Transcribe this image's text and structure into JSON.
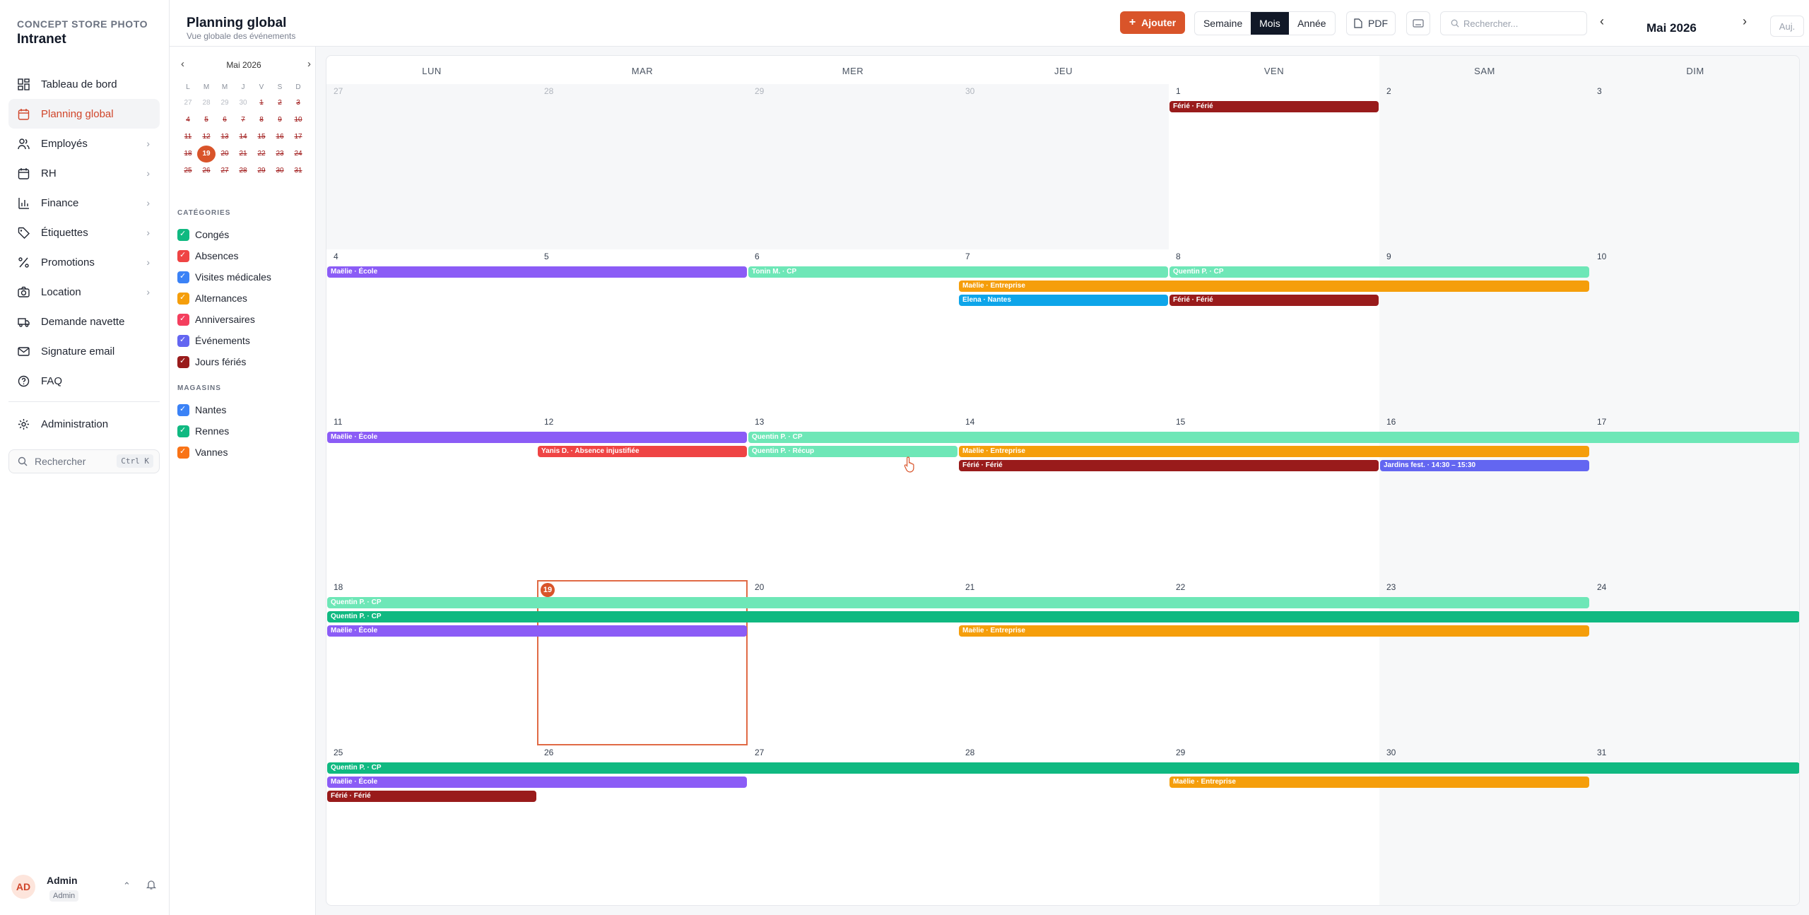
{
  "app": {
    "brand_sub": "CONCEPT STORE PHOTO",
    "brand_title": "Intranet"
  },
  "sidebar": {
    "items": [
      {
        "label": "Tableau de bord",
        "icon": "dashboard-icon",
        "chevron": false,
        "active": false
      },
      {
        "label": "Planning global",
        "icon": "calendar-icon",
        "chevron": false,
        "active": true
      },
      {
        "label": "Employés",
        "icon": "users-icon",
        "chevron": true,
        "active": false
      },
      {
        "label": "RH",
        "icon": "calendar-icon",
        "chevron": true,
        "active": false
      },
      {
        "label": "Finance",
        "icon": "chart-icon",
        "chevron": true,
        "active": false
      },
      {
        "label": "Étiquettes",
        "icon": "tag-icon",
        "chevron": true,
        "active": false
      },
      {
        "label": "Promotions",
        "icon": "percent-icon",
        "chevron": true,
        "active": false
      },
      {
        "label": "Location",
        "icon": "camera-icon",
        "chevron": true,
        "active": false
      },
      {
        "label": "Demande navette",
        "icon": "truck-icon",
        "chevron": false,
        "active": false
      },
      {
        "label": "Signature email",
        "icon": "mail-icon",
        "chevron": false,
        "active": false
      },
      {
        "label": "FAQ",
        "icon": "help-icon",
        "chevron": false,
        "active": false
      }
    ],
    "admin_label": "Administration",
    "search_placeholder": "Rechercher",
    "search_shortcut": "Ctrl K",
    "user": {
      "initials": "AD",
      "name": "Admin",
      "role": "Admin"
    }
  },
  "header": {
    "title": "Planning global",
    "subtitle": "Vue globale des événements",
    "add_label": "Ajouter",
    "views": [
      "Semaine",
      "Mois",
      "Année"
    ],
    "active_view": "Mois",
    "pdf_label": "PDF",
    "search_placeholder": "Rechercher...",
    "month_label": "Mai 2026",
    "today_label": "Auj."
  },
  "mini_calendar": {
    "title": "Mai 2026",
    "weekdays": [
      "L",
      "M",
      "M",
      "J",
      "V",
      "S",
      "D"
    ],
    "weeks": [
      [
        "27",
        "28",
        "29",
        "30",
        "1",
        "2",
        "3"
      ],
      [
        "4",
        "5",
        "6",
        "7",
        "8",
        "9",
        "10"
      ],
      [
        "11",
        "12",
        "13",
        "14",
        "15",
        "16",
        "17"
      ],
      [
        "18",
        "19",
        "20",
        "21",
        "22",
        "23",
        "24"
      ],
      [
        "25",
        "26",
        "27",
        "28",
        "29",
        "30",
        "31"
      ]
    ],
    "today": "19"
  },
  "categories": {
    "title": "CATÉGORIES",
    "items": [
      {
        "label": "Congés",
        "color": "#10b981"
      },
      {
        "label": "Absences",
        "color": "#ef4444"
      },
      {
        "label": "Visites médicales",
        "color": "#3b82f6"
      },
      {
        "label": "Alternances",
        "color": "#f59e0b"
      },
      {
        "label": "Anniversaires",
        "color": "#f43f5e"
      },
      {
        "label": "Événements",
        "color": "#6366f1"
      },
      {
        "label": "Jours fériés",
        "color": "#991b1b"
      }
    ]
  },
  "stores": {
    "title": "MAGASINS",
    "items": [
      {
        "label": "Nantes",
        "color": "#3b82f6"
      },
      {
        "label": "Rennes",
        "color": "#10b981"
      },
      {
        "label": "Vannes",
        "color": "#f97316"
      }
    ]
  },
  "calendar": {
    "weekdays": [
      "LUN",
      "MAR",
      "MER",
      "JEU",
      "VEN",
      "SAM",
      "DIM"
    ],
    "weeks": [
      [
        "27",
        "28",
        "29",
        "30",
        "1",
        "2",
        "3"
      ],
      [
        "4",
        "5",
        "6",
        "7",
        "8",
        "9",
        "10"
      ],
      [
        "11",
        "12",
        "13",
        "14",
        "15",
        "16",
        "17"
      ],
      [
        "18",
        "19",
        "20",
        "21",
        "22",
        "23",
        "24"
      ],
      [
        "25",
        "26",
        "27",
        "28",
        "29",
        "30",
        "31"
      ]
    ],
    "outside_cells": [
      [
        0,
        0
      ],
      [
        0,
        1
      ],
      [
        0,
        2
      ],
      [
        0,
        3
      ]
    ],
    "today_cell": [
      3,
      1
    ],
    "events": [
      {
        "week": 0,
        "start": 4,
        "end": 4,
        "lane": 0,
        "title": "Férié · Férié",
        "color": "#991b1b"
      },
      {
        "week": 1,
        "start": 0,
        "end": 1,
        "lane": 0,
        "title": "Maëlie · École",
        "color": "#8b5cf6"
      },
      {
        "week": 1,
        "start": 2,
        "end": 3,
        "lane": 0,
        "title": "Tonin M. · CP",
        "color": "#6ee7b7"
      },
      {
        "week": 1,
        "start": 4,
        "end": 5,
        "lane": 0,
        "title": "Quentin P. · CP",
        "color": "#6ee7b7"
      },
      {
        "week": 1,
        "start": 3,
        "end": 5,
        "lane": 1,
        "title": "Maëlie · Entreprise",
        "color": "#f59e0b"
      },
      {
        "week": 1,
        "start": 3,
        "end": 3,
        "lane": 2,
        "title": "Elena · Nantes",
        "color": "#0ea5e9"
      },
      {
        "week": 1,
        "start": 4,
        "end": 4,
        "lane": 2,
        "title": "Férié · Férié",
        "color": "#991b1b"
      },
      {
        "week": 2,
        "start": 0,
        "end": 1,
        "lane": 0,
        "title": "Maëlie · École",
        "color": "#8b5cf6"
      },
      {
        "week": 2,
        "start": 2,
        "end": 6,
        "lane": 0,
        "title": "Quentin P. · CP",
        "color": "#6ee7b7"
      },
      {
        "week": 2,
        "start": 1,
        "end": 1,
        "lane": 1,
        "title": "Yanis D. · Absence injustifiée",
        "color": "#ef4444"
      },
      {
        "week": 2,
        "start": 2,
        "end": 2,
        "lane": 1,
        "title": "Quentin P. · Récup",
        "color": "#6ee7b7"
      },
      {
        "week": 2,
        "start": 3,
        "end": 5,
        "lane": 1,
        "title": "Maëlie · Entreprise",
        "color": "#f59e0b"
      },
      {
        "week": 2,
        "start": 3,
        "end": 4,
        "lane": 2,
        "title": "Férié · Férié",
        "color": "#991b1b"
      },
      {
        "week": 2,
        "start": 5,
        "end": 5,
        "lane": 2,
        "title": "Jardins fest. · 14:30 – 15:30",
        "color": "#6366f1"
      },
      {
        "week": 3,
        "start": 0,
        "end": 5,
        "lane": 0,
        "title": "Quentin P. · CP",
        "color": "#6ee7b7"
      },
      {
        "week": 3,
        "start": 0,
        "end": 6,
        "lane": 1,
        "title": "Quentin P. · CP",
        "color": "#10b981"
      },
      {
        "week": 3,
        "start": 0,
        "end": 1,
        "lane": 2,
        "title": "Maëlie · École",
        "color": "#8b5cf6"
      },
      {
        "week": 3,
        "start": 3,
        "end": 5,
        "lane": 2,
        "title": "Maëlie · Entreprise",
        "color": "#f59e0b"
      },
      {
        "week": 4,
        "start": 0,
        "end": 6,
        "lane": 0,
        "title": "Quentin P. · CP",
        "color": "#10b981"
      },
      {
        "week": 4,
        "start": 0,
        "end": 1,
        "lane": 1,
        "title": "Maëlie · École",
        "color": "#8b5cf6"
      },
      {
        "week": 4,
        "start": 4,
        "end": 5,
        "lane": 1,
        "title": "Maëlie · Entreprise",
        "color": "#f59e0b"
      },
      {
        "week": 4,
        "start": 0,
        "end": 0,
        "lane": 2,
        "title": "Férié · Férié",
        "color": "#991b1b"
      }
    ]
  }
}
